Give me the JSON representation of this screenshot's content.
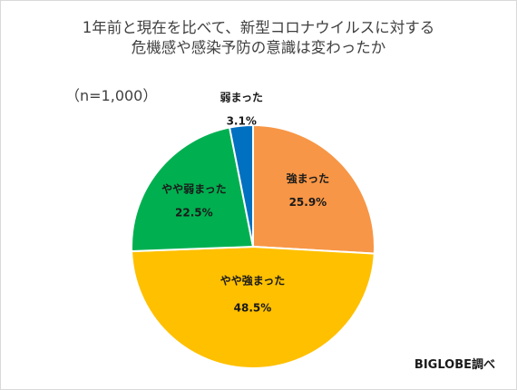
{
  "chart_data": {
    "type": "pie",
    "title_lines": [
      "1年前と現在を比べて、新型コロナウイルスに対する",
      "危機感や感染予防の意識は変わったか"
    ],
    "note": "（n=1,000）",
    "source": "BIGLOBE調べ",
    "start": "12 o'clock, clockwise",
    "slices": [
      {
        "label": "強まった",
        "value": 25.9,
        "value_text": "25.9%",
        "color": "#f79646"
      },
      {
        "label": "やや強まった",
        "value": 48.5,
        "value_text": "48.5%",
        "color": "#ffc000"
      },
      {
        "label": "やや弱まった",
        "value": 22.5,
        "value_text": "22.5%",
        "color": "#00b050"
      },
      {
        "label": "弱まった",
        "value": 3.1,
        "value_text": "3.1%",
        "color": "#0070c0"
      }
    ]
  }
}
